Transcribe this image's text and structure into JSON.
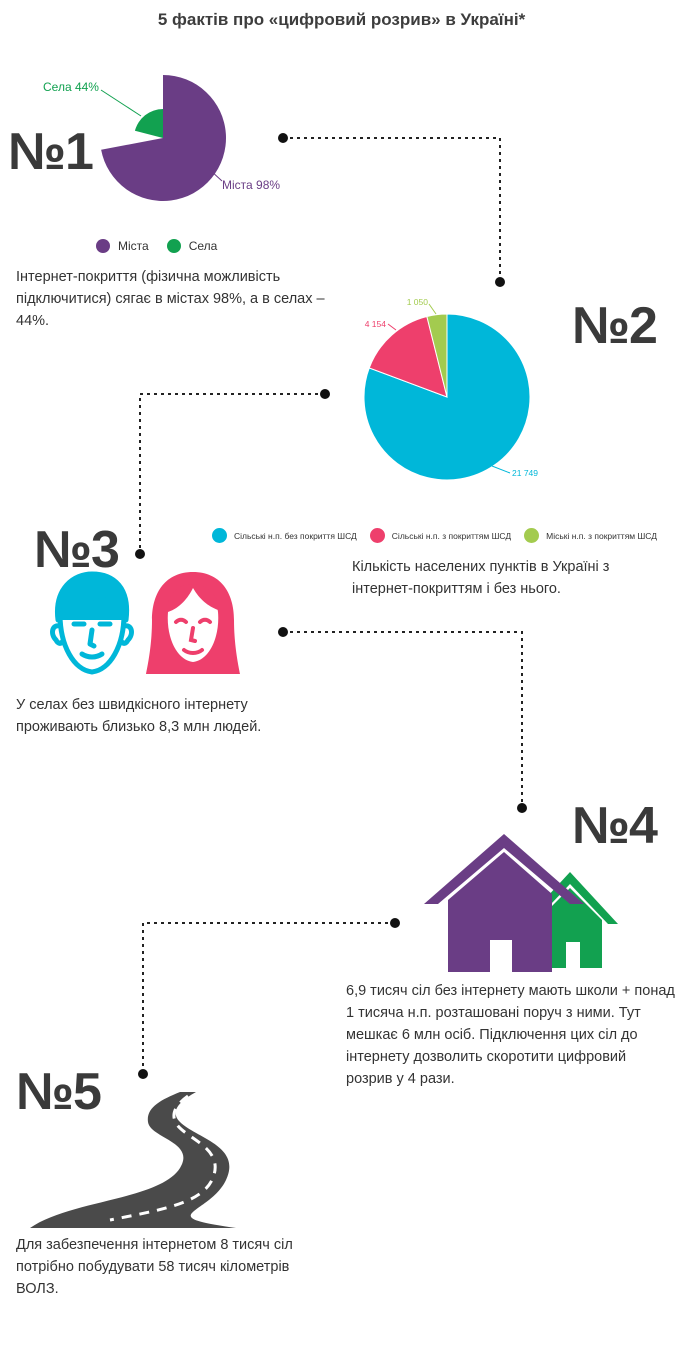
{
  "title": "5 фактів про «цифровий розрив»  в Україні*",
  "facts": [
    {
      "number": "№1",
      "text": "Інтернет-покриття (фізична можливість підключитися) сягає в містах 98%, а в селах – 44%."
    },
    {
      "number": "№2",
      "text": "Кількість населених пунктів в Україні з інтернет-покриттям і без нього."
    },
    {
      "number": "№3",
      "text": "У селах без швидкісного інтернету проживають близько 8,3 млн людей."
    },
    {
      "number": "№4",
      "text": "6,9 тисяч сіл без інтернету мають школи + понад 1 тисяча н.п. розташовані поруч з ними. Тут мешкає 6 млн осіб. Підключення цих сіл до інтернету дозволить скоротити цифровий розрив у 4 рази."
    },
    {
      "number": "№5",
      "text": "Для забезпечення інтернетом 8 тисяч сіл потрібно побудувати 58 тисяч кілометрів ВОЛЗ."
    }
  ],
  "chart_data": [
    {
      "type": "pie",
      "series": [
        {
          "name": "Міста",
          "value": 98,
          "label": "Міста 98%",
          "color": "#6a3d85"
        },
        {
          "name": "Села",
          "value": 44,
          "label": "Села 44%",
          "color": "#12a150"
        }
      ],
      "legend": {
        "placement": "bottom",
        "items": [
          "Міста",
          "Села"
        ]
      }
    },
    {
      "type": "pie",
      "series": [
        {
          "name": "Сільські н.п. без покриття ШСД",
          "value": 21749,
          "label": "21 749",
          "color": "#00b7d9"
        },
        {
          "name": "Сільські н.п. з покриттям ШСД",
          "value": 4154,
          "label": "4 154",
          "color": "#ee3f6c"
        },
        {
          "name": "Міські н.п. з покриттям ШСД",
          "value": 1050,
          "label": "1 050",
          "color": "#a3cb4f"
        }
      ],
      "legend": {
        "placement": "bottom",
        "items": [
          "Сільські н.п. без покриття ШСД",
          "Сільські н.п. з покриттям ШСД",
          "Міські н.п. з покриттям ШСД"
        ]
      }
    }
  ],
  "icons": {
    "man": "man-face-icon",
    "woman": "woman-face-icon",
    "houses": "houses-icon",
    "road": "road-icon"
  },
  "colors": {
    "purple": "#6a3d85",
    "green": "#12a150",
    "cyan": "#00b7d9",
    "pink": "#ee3f6c",
    "lime": "#a3cb4f",
    "dark": "#3a3a3a"
  }
}
